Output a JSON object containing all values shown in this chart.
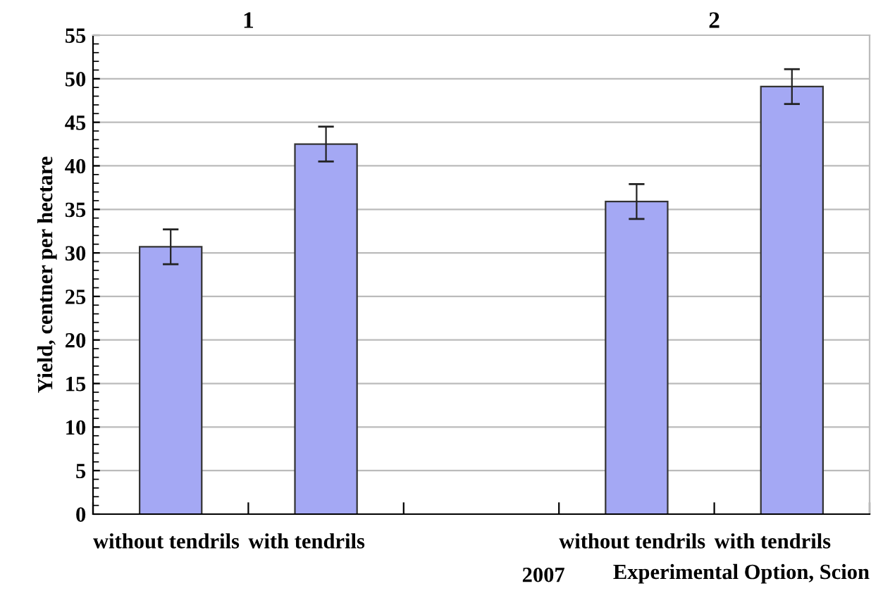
{
  "chart_data": {
    "type": "bar",
    "ylabel": "Yield, centner per hectare",
    "xlabel": "Experimental Option, Scion",
    "categories": [
      "without tendrils",
      "with tendrils",
      null,
      "without tendrils",
      "with tendrils"
    ],
    "values": [
      30.7,
      42.5,
      null,
      35.9,
      49.1
    ],
    "errors": [
      2,
      2,
      null,
      2,
      2
    ],
    "color": "#a4a8f4",
    "ylim": [
      0,
      55
    ],
    "yticks": [
      0,
      5,
      10,
      15,
      20,
      25,
      30,
      35,
      40,
      45,
      50,
      55
    ],
    "grid": "y",
    "annotations": [
      "1",
      "2",
      "2007"
    ]
  }
}
